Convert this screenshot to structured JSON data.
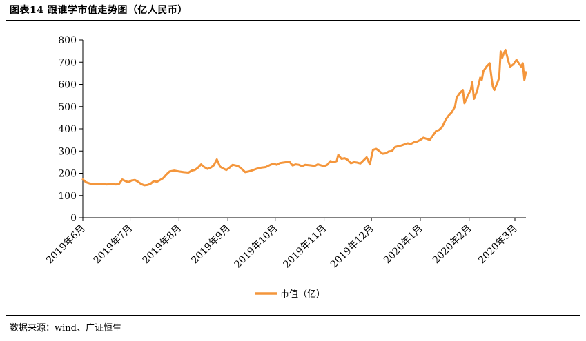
{
  "header": {
    "title": "图表14 跟谁学市值走势图（亿人民币）"
  },
  "footer": {
    "source": "数据来源：wind、广证恒生"
  },
  "colors": {
    "series": "#F4963C",
    "axis": "#000000"
  },
  "chart_data": {
    "type": "line",
    "title": "图表14 跟谁学市值走势图（亿人民币）",
    "xlabel": "",
    "ylabel": "",
    "ylim": [
      0,
      800
    ],
    "yticks": [
      0,
      100,
      200,
      300,
      400,
      500,
      600,
      700,
      800
    ],
    "xrange": [
      "2019-06-06",
      "2020-03-13"
    ],
    "xticks": [
      {
        "date": "2019-06-06",
        "label": "2019年6月"
      },
      {
        "date": "2019-07-06",
        "label": "2019年7月"
      },
      {
        "date": "2019-08-06",
        "label": "2019年8月"
      },
      {
        "date": "2019-09-06",
        "label": "2019年9月"
      },
      {
        "date": "2019-10-06",
        "label": "2019年10月"
      },
      {
        "date": "2019-11-06",
        "label": "2019年11月"
      },
      {
        "date": "2019-12-06",
        "label": "2019年12月"
      },
      {
        "date": "2020-01-06",
        "label": "2020年1月"
      },
      {
        "date": "2020-02-06",
        "label": "2020年2月"
      },
      {
        "date": "2020-03-06",
        "label": "2020年3月"
      }
    ],
    "grid": false,
    "legend": "bottom-center",
    "series": [
      {
        "name": "市值（亿）",
        "points": [
          [
            "2019-06-06",
            172
          ],
          [
            "2019-06-08",
            160
          ],
          [
            "2019-06-10",
            155
          ],
          [
            "2019-06-12",
            152
          ],
          [
            "2019-06-15",
            153
          ],
          [
            "2019-06-18",
            152
          ],
          [
            "2019-06-21",
            150
          ],
          [
            "2019-06-24",
            151
          ],
          [
            "2019-06-27",
            150
          ],
          [
            "2019-06-29",
            152
          ],
          [
            "2019-07-01",
            172
          ],
          [
            "2019-07-03",
            165
          ],
          [
            "2019-07-05",
            160
          ],
          [
            "2019-07-07",
            168
          ],
          [
            "2019-07-09",
            170
          ],
          [
            "2019-07-11",
            162
          ],
          [
            "2019-07-13",
            152
          ],
          [
            "2019-07-15",
            146
          ],
          [
            "2019-07-17",
            148
          ],
          [
            "2019-07-19",
            153
          ],
          [
            "2019-07-21",
            165
          ],
          [
            "2019-07-23",
            162
          ],
          [
            "2019-07-25",
            170
          ],
          [
            "2019-07-27",
            178
          ],
          [
            "2019-07-29",
            195
          ],
          [
            "2019-07-31",
            208
          ],
          [
            "2019-08-03",
            212
          ],
          [
            "2019-08-06",
            208
          ],
          [
            "2019-08-09",
            205
          ],
          [
            "2019-08-12",
            203
          ],
          [
            "2019-08-14",
            212
          ],
          [
            "2019-08-16",
            215
          ],
          [
            "2019-08-18",
            225
          ],
          [
            "2019-08-20",
            240
          ],
          [
            "2019-08-22",
            228
          ],
          [
            "2019-08-24",
            220
          ],
          [
            "2019-08-26",
            225
          ],
          [
            "2019-08-28",
            235
          ],
          [
            "2019-08-30",
            262
          ],
          [
            "2019-09-01",
            230
          ],
          [
            "2019-09-03",
            222
          ],
          [
            "2019-09-05",
            215
          ],
          [
            "2019-09-07",
            225
          ],
          [
            "2019-09-09",
            238
          ],
          [
            "2019-09-11",
            235
          ],
          [
            "2019-09-13",
            230
          ],
          [
            "2019-09-15",
            218
          ],
          [
            "2019-09-17",
            205
          ],
          [
            "2019-09-19",
            208
          ],
          [
            "2019-09-21",
            212
          ],
          [
            "2019-09-24",
            220
          ],
          [
            "2019-09-27",
            225
          ],
          [
            "2019-09-30",
            228
          ],
          [
            "2019-10-03",
            238
          ],
          [
            "2019-10-05",
            243
          ],
          [
            "2019-10-07",
            238
          ],
          [
            "2019-10-09",
            246
          ],
          [
            "2019-10-11",
            248
          ],
          [
            "2019-10-13",
            250
          ],
          [
            "2019-10-15",
            252
          ],
          [
            "2019-10-17",
            235
          ],
          [
            "2019-10-19",
            240
          ],
          [
            "2019-10-21",
            238
          ],
          [
            "2019-10-23",
            232
          ],
          [
            "2019-10-25",
            238
          ],
          [
            "2019-10-28",
            236
          ],
          [
            "2019-10-31",
            233
          ],
          [
            "2019-11-02",
            240
          ],
          [
            "2019-11-04",
            236
          ],
          [
            "2019-11-06",
            232
          ],
          [
            "2019-11-08",
            238
          ],
          [
            "2019-11-10",
            255
          ],
          [
            "2019-11-12",
            250
          ],
          [
            "2019-11-14",
            255
          ],
          [
            "2019-11-15",
            283
          ],
          [
            "2019-11-17",
            265
          ],
          [
            "2019-11-19",
            268
          ],
          [
            "2019-11-21",
            260
          ],
          [
            "2019-11-23",
            245
          ],
          [
            "2019-11-25",
            250
          ],
          [
            "2019-11-27",
            248
          ],
          [
            "2019-11-29",
            244
          ],
          [
            "2019-12-01",
            258
          ],
          [
            "2019-12-03",
            272
          ],
          [
            "2019-12-05",
            240
          ],
          [
            "2019-12-07",
            305
          ],
          [
            "2019-12-09",
            310
          ],
          [
            "2019-12-11",
            300
          ],
          [
            "2019-12-13",
            288
          ],
          [
            "2019-12-15",
            290
          ],
          [
            "2019-12-17",
            298
          ],
          [
            "2019-12-19",
            300
          ],
          [
            "2019-12-21",
            318
          ],
          [
            "2019-12-23",
            322
          ],
          [
            "2019-12-25",
            325
          ],
          [
            "2019-12-27",
            330
          ],
          [
            "2019-12-29",
            335
          ],
          [
            "2019-12-31",
            332
          ],
          [
            "2020-01-02",
            340
          ],
          [
            "2020-01-04",
            343
          ],
          [
            "2020-01-06",
            350
          ],
          [
            "2020-01-08",
            360
          ],
          [
            "2020-01-10",
            355
          ],
          [
            "2020-01-12",
            350
          ],
          [
            "2020-01-14",
            370
          ],
          [
            "2020-01-16",
            390
          ],
          [
            "2020-01-18",
            395
          ],
          [
            "2020-01-20",
            410
          ],
          [
            "2020-01-22",
            440
          ],
          [
            "2020-01-24",
            460
          ],
          [
            "2020-01-26",
            475
          ],
          [
            "2020-01-28",
            500
          ],
          [
            "2020-01-29",
            540
          ],
          [
            "2020-01-31",
            560
          ],
          [
            "2020-02-02",
            575
          ],
          [
            "2020-02-03",
            515
          ],
          [
            "2020-02-05",
            548
          ],
          [
            "2020-02-07",
            575
          ],
          [
            "2020-02-08",
            610
          ],
          [
            "2020-02-09",
            535
          ],
          [
            "2020-02-11",
            570
          ],
          [
            "2020-02-13",
            630
          ],
          [
            "2020-02-14",
            620
          ],
          [
            "2020-02-15",
            660
          ],
          [
            "2020-02-17",
            680
          ],
          [
            "2020-02-19",
            695
          ],
          [
            "2020-02-20",
            640
          ],
          [
            "2020-02-21",
            590
          ],
          [
            "2020-02-22",
            575
          ],
          [
            "2020-02-24",
            610
          ],
          [
            "2020-02-25",
            630
          ],
          [
            "2020-02-26",
            748
          ],
          [
            "2020-02-27",
            720
          ],
          [
            "2020-02-28",
            740
          ],
          [
            "2020-02-29",
            755
          ],
          [
            "2020-03-02",
            700
          ],
          [
            "2020-03-03",
            680
          ],
          [
            "2020-03-05",
            690
          ],
          [
            "2020-03-07",
            710
          ],
          [
            "2020-03-08",
            700
          ],
          [
            "2020-03-10",
            680
          ],
          [
            "2020-03-11",
            695
          ],
          [
            "2020-03-12",
            620
          ],
          [
            "2020-03-13",
            655
          ]
        ]
      }
    ]
  }
}
